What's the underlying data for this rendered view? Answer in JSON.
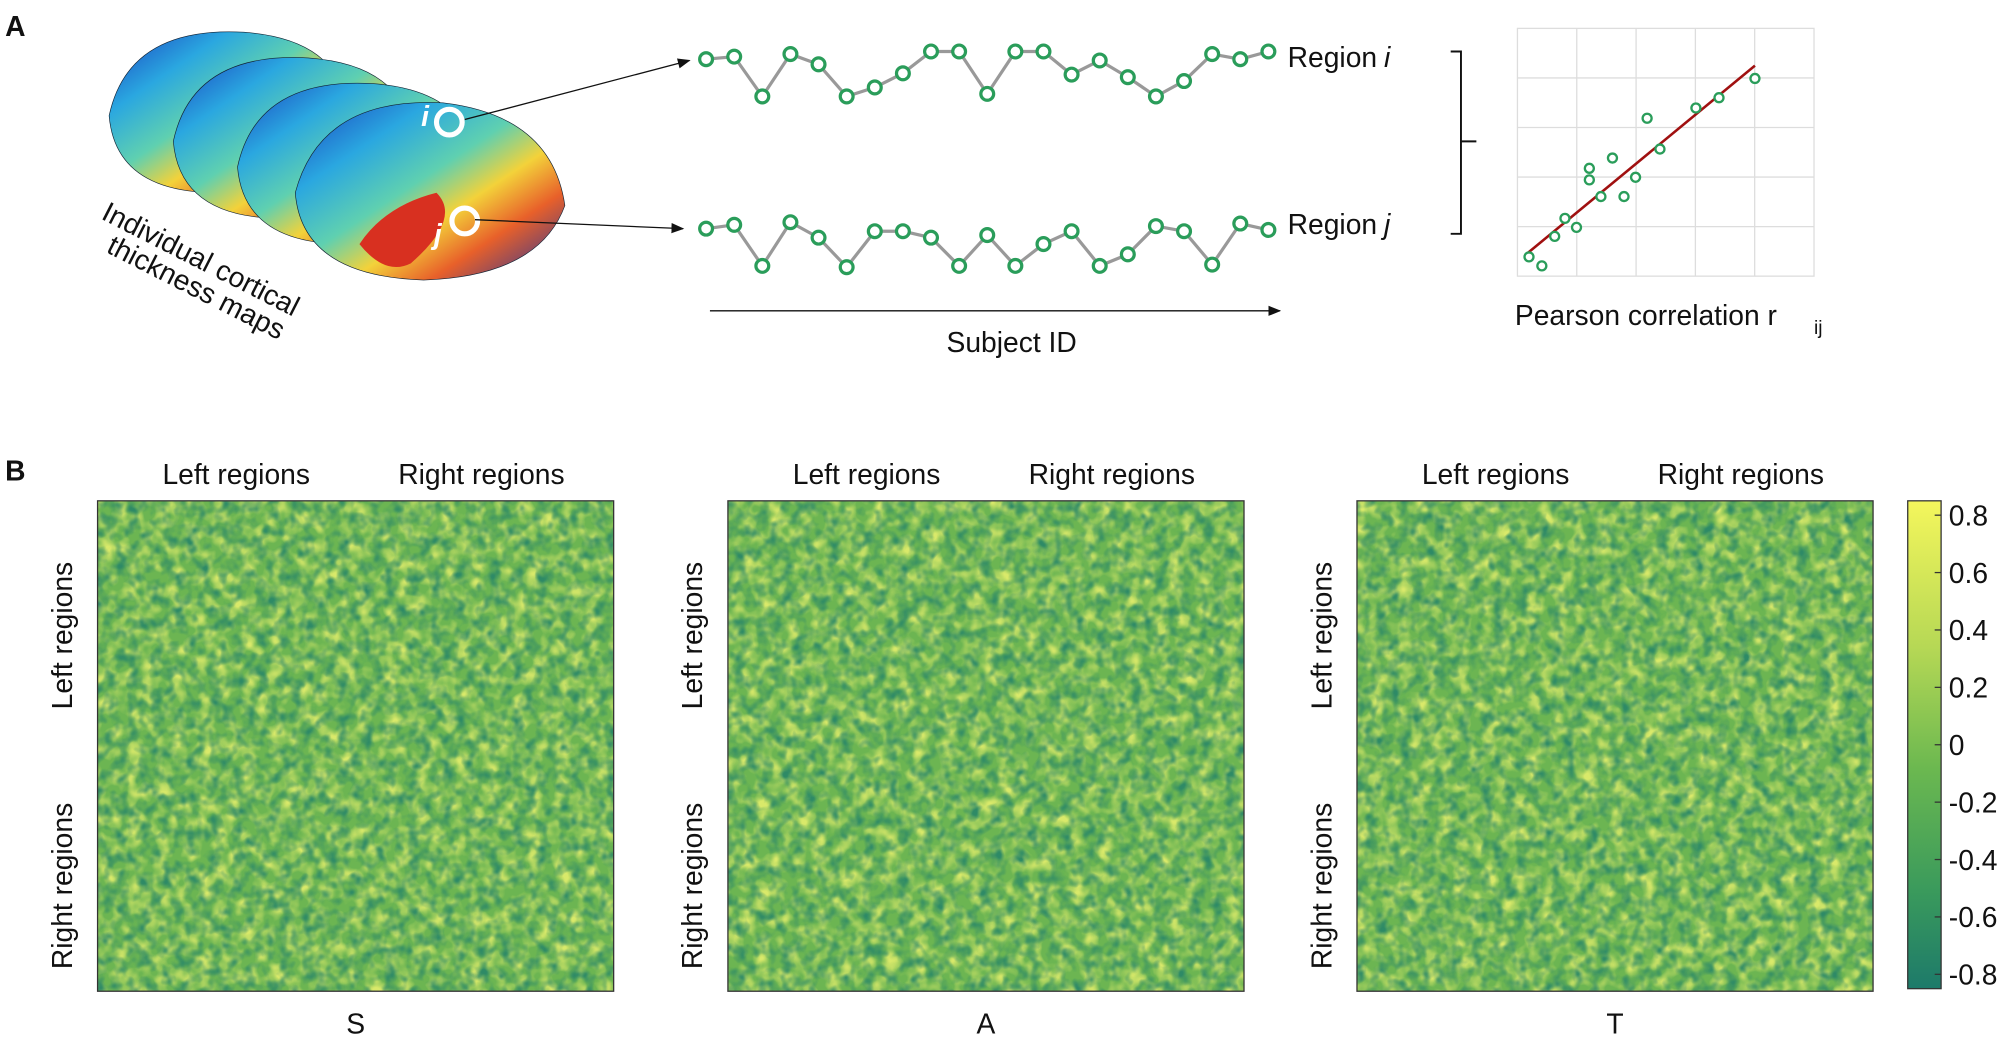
{
  "panel_a": {
    "label": "A",
    "maps_caption": [
      "Individual cortical",
      "thickness maps"
    ],
    "point_i": "i",
    "point_j": "j",
    "region_i": {
      "label": "Region",
      "var": "i"
    },
    "region_j": {
      "label": "Region",
      "var": "j"
    },
    "x_axis": "Subject ID",
    "correlation": {
      "label": "Pearson correlation r",
      "sub": "ij"
    }
  },
  "panel_b": {
    "label": "B",
    "matrices": [
      {
        "name": "S",
        "top": [
          "Left regions",
          "Right regions"
        ],
        "side": [
          "Left regions",
          "Right regions"
        ]
      },
      {
        "name": "A",
        "top": [
          "Left regions",
          "Right regions"
        ],
        "side": [
          "Left regions",
          "Right regions"
        ]
      },
      {
        "name": "T",
        "top": [
          "Left regions",
          "Right regions"
        ],
        "side": [
          "Left regions",
          "Right regions"
        ]
      }
    ],
    "colorbar": {
      "lim": [
        -0.85,
        0.85
      ],
      "ticks": [
        0.8,
        0.6,
        0.4,
        0.2,
        0,
        -0.2,
        -0.4,
        -0.6,
        -0.8
      ]
    }
  }
}
